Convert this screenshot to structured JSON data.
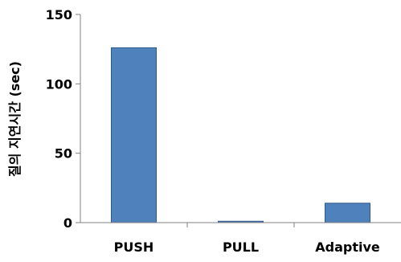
{
  "chart_data": {
    "type": "bar",
    "categories": [
      "PUSH",
      "PULL",
      "Adaptive"
    ],
    "values": [
      126,
      1,
      14
    ],
    "title": "",
    "xlabel": "",
    "ylabel": "질의 지연시간 (sec)",
    "ylim": [
      0,
      150
    ],
    "yticks": [
      0,
      50,
      100,
      150
    ],
    "grid": false,
    "legend": "none",
    "colors": {
      "bar_fill": "#4f81bd",
      "bar_stroke": "#2f5a8c",
      "axis": "#808080"
    }
  }
}
